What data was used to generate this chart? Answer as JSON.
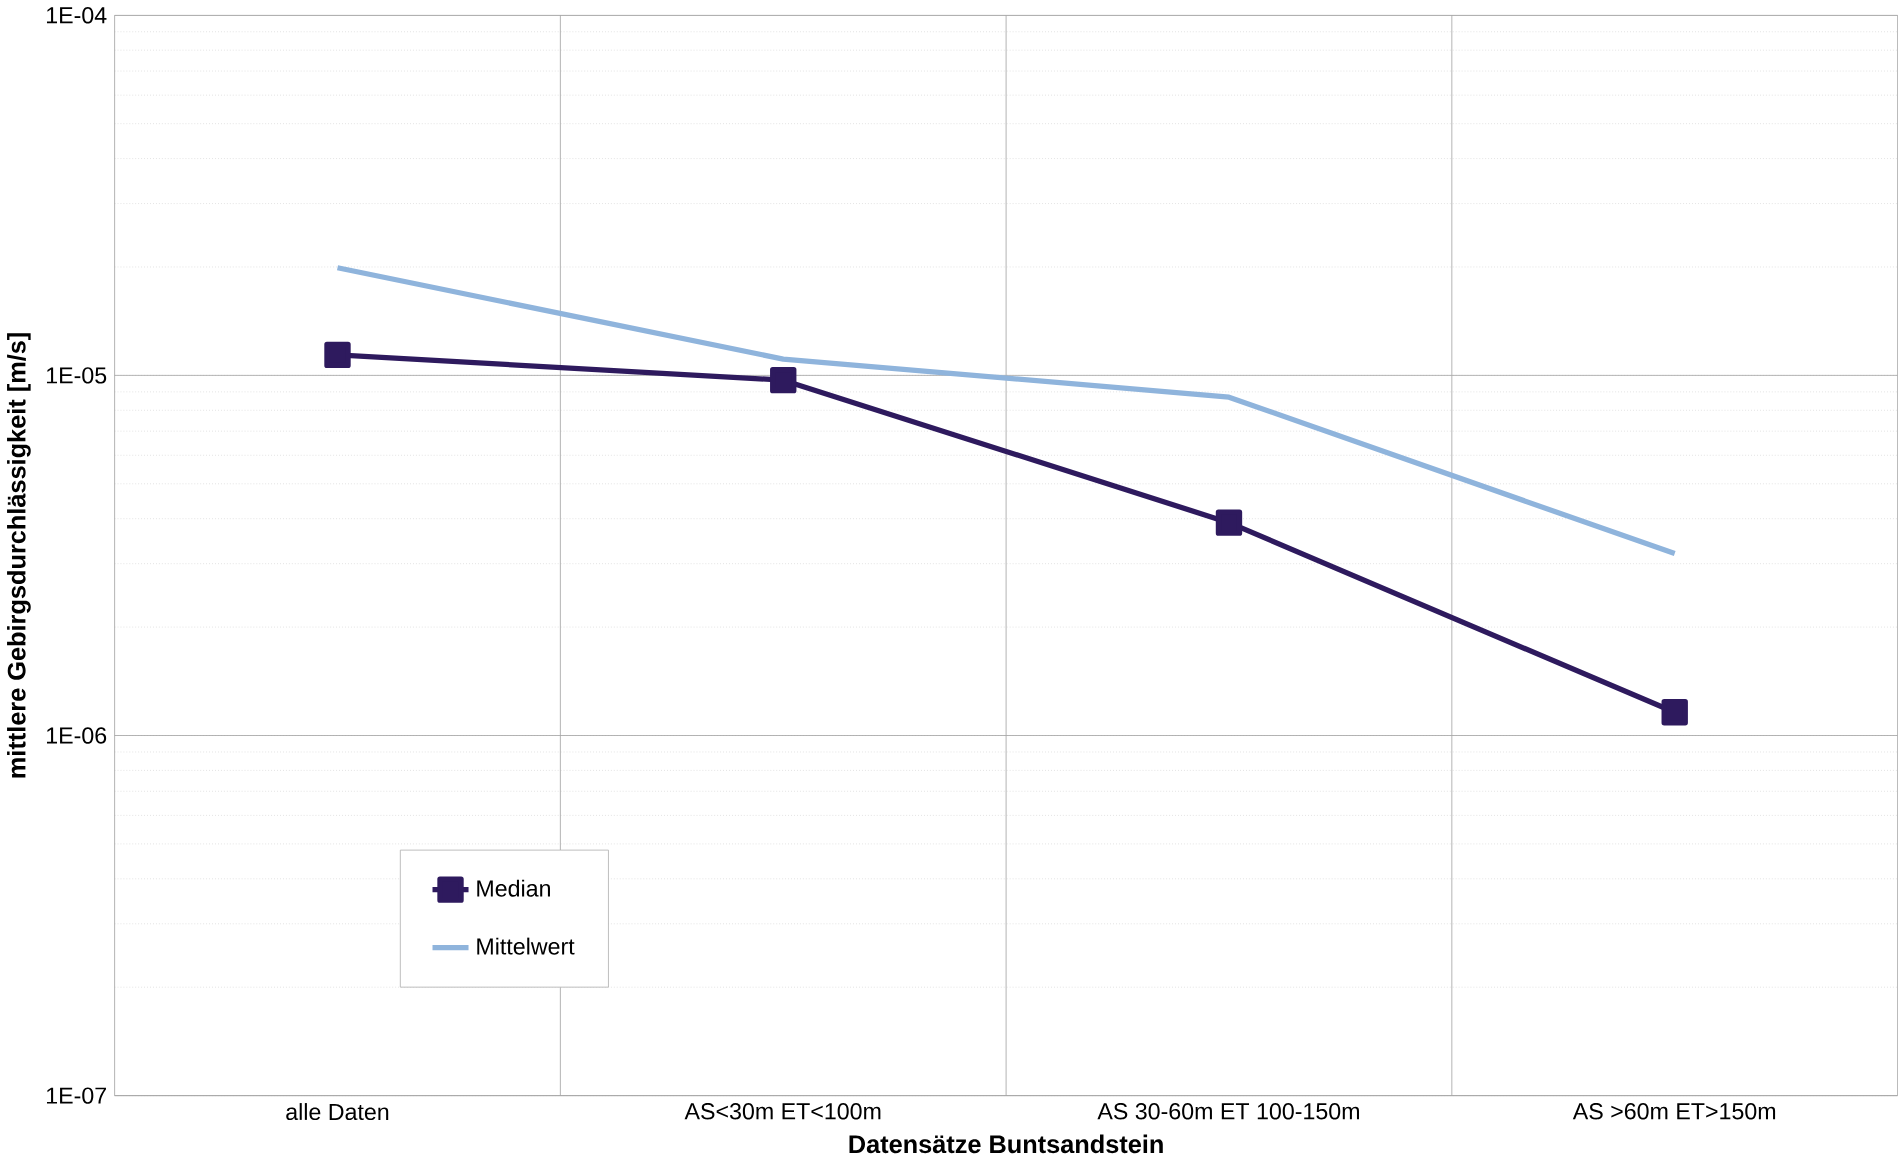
{
  "chart_data": {
    "type": "line",
    "xlabel": "Datensätze Buntsandstein",
    "ylabel": "mittlere Gebirgsdurchlässigkeit [m/s]",
    "categories": [
      "alle Daten",
      "AS<30m ET<100m",
      "AS 30-60m ET 100-150m",
      "AS >60m ET>150m"
    ],
    "series": [
      {
        "name": "Median",
        "color": "#2e1a5e",
        "marker": "square",
        "values": [
          1.14e-05,
          9.7e-06,
          3.9e-06,
          1.16e-06
        ]
      },
      {
        "name": "Mittelwert",
        "color": "#8fb4dc",
        "marker": "none",
        "values": [
          1.99e-05,
          1.11e-05,
          8.7e-06,
          3.2e-06
        ]
      }
    ],
    "log": "y",
    "ylim": [
      1e-07,
      0.0001
    ],
    "yticks": [
      {
        "value": 1e-07,
        "label": "1E-07"
      },
      {
        "value": 1e-06,
        "label": "1E-06"
      },
      {
        "value": 1e-05,
        "label": "1E-05"
      },
      {
        "value": 0.0001,
        "label": "1E-04"
      }
    ],
    "grid": true,
    "legend": "bottom left",
    "line_style": "solid"
  }
}
